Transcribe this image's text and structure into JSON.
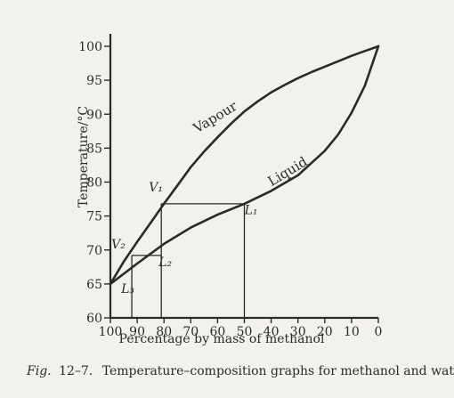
{
  "chart_data": {
    "type": "line",
    "xlabel": "Percentage by mass of methanol",
    "ylabel": "Temperature/°C",
    "xlim": [
      100,
      0
    ],
    "ylim": [
      60,
      100
    ],
    "x_ticks": [
      100,
      90,
      80,
      70,
      60,
      50,
      40,
      30,
      20,
      10,
      0
    ],
    "y_ticks": [
      60,
      65,
      70,
      75,
      80,
      85,
      90,
      95,
      100
    ],
    "x_tick_labels": [
      "100",
      "90",
      "80",
      "70",
      "60",
      "50",
      "40",
      "30",
      "20",
      "10",
      "0"
    ],
    "y_tick_labels": [
      "60",
      "65",
      "70",
      "75",
      "80",
      "85",
      "90",
      "95",
      "100"
    ],
    "series": [
      {
        "name": "Vapour",
        "x": [
          100,
          95,
          90,
          85,
          80,
          75,
          70,
          65,
          60,
          55,
          50,
          45,
          40,
          35,
          30,
          25,
          20,
          15,
          10,
          5,
          0
        ],
        "y": [
          65,
          68.3,
          71.2,
          74.0,
          76.8,
          79.5,
          82.2,
          84.5,
          86.6,
          88.6,
          90.4,
          91.9,
          93.2,
          94.3,
          95.3,
          96.2,
          97.0,
          97.8,
          98.6,
          99.3,
          100
        ]
      },
      {
        "name": "Liquid",
        "x": [
          100,
          90,
          80,
          70,
          60,
          50,
          40,
          30,
          20,
          15,
          10,
          5,
          0
        ],
        "y": [
          65,
          68.0,
          70.9,
          73.3,
          75.2,
          76.8,
          78.7,
          81.0,
          84.6,
          87.0,
          90.2,
          94.2,
          100
        ]
      }
    ],
    "tie_lines": [
      {
        "from": [
          81,
          76.8
        ],
        "to": [
          50,
          76.8
        ]
      },
      {
        "from": [
          92,
          69.2
        ],
        "to": [
          81,
          69.2
        ]
      }
    ],
    "drop_lines": [
      {
        "x": 81,
        "y_top": 76.8
      },
      {
        "x": 50,
        "y_top": 76.8
      },
      {
        "x": 92,
        "y_top": 69.2
      }
    ],
    "annotations": [
      {
        "label": "Vapour",
        "italic": false,
        "x": 60,
        "y": 89,
        "rotate": true
      },
      {
        "label": "Liquid",
        "italic": false,
        "x": 33,
        "y": 81,
        "rotate": true
      },
      {
        "label": "V₁",
        "x": 83,
        "y": 78.6
      },
      {
        "label": "L₁",
        "x": 47.5,
        "y": 75.3
      },
      {
        "label": "V₂",
        "x": 97,
        "y": 70.2
      },
      {
        "label": "L₂",
        "x": 79.5,
        "y": 67.6
      },
      {
        "label": "L₃",
        "x": 93.5,
        "y": 63.7
      }
    ],
    "grid": false,
    "legend": "none"
  },
  "caption": {
    "fig_label": "Fig.",
    "fig_number": "12–7.",
    "text": "Temperature–composition graphs for methanol and water"
  }
}
